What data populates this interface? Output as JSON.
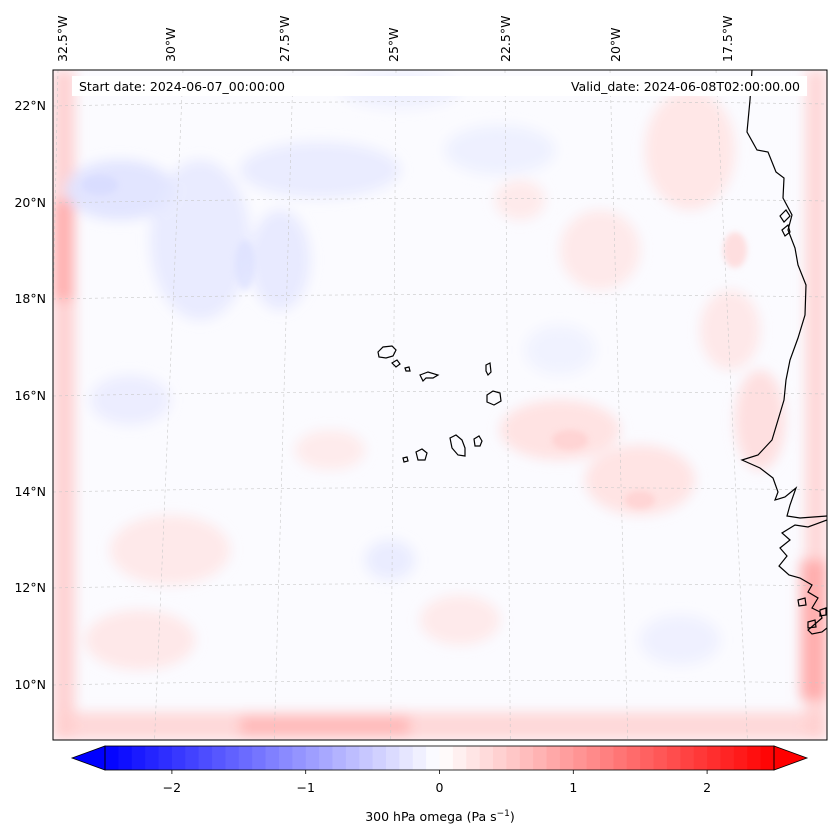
{
  "header": {
    "start_date": "Start date: 2024-06-07_00:00:00",
    "valid_date": "Valid_date: 2024-06-08T02:00:00.00"
  },
  "lon_ticks": [
    {
      "value": -32.5,
      "label": "32.5°W"
    },
    {
      "value": -30.0,
      "label": "30°W"
    },
    {
      "value": -27.5,
      "label": "27.5°W"
    },
    {
      "value": -25.0,
      "label": "25°W"
    },
    {
      "value": -22.5,
      "label": "22.5°W"
    },
    {
      "value": -20.0,
      "label": "20°W"
    },
    {
      "value": -17.5,
      "label": "17.5°W"
    }
  ],
  "lat_ticks": [
    {
      "value": 22,
      "label": "22°N"
    },
    {
      "value": 20,
      "label": "20°N"
    },
    {
      "value": 18,
      "label": "18°N"
    },
    {
      "value": 16,
      "label": "16°N"
    },
    {
      "value": 14,
      "label": "14°N"
    },
    {
      "value": 12,
      "label": "12°N"
    },
    {
      "value": 10,
      "label": "10°N"
    }
  ],
  "colorbar": {
    "min": -2.5,
    "max": 2.5,
    "ticks": [
      {
        "value": -2,
        "label": "−2"
      },
      {
        "value": -1,
        "label": "−1"
      },
      {
        "value": 0,
        "label": "0"
      },
      {
        "value": 1,
        "label": "1"
      },
      {
        "value": 2,
        "label": "2"
      }
    ],
    "label_main": "300 hPa omega (Pa s",
    "label_exp": "−1",
    "label_end": ")",
    "colormap": "bwr",
    "low_color": "#0000ff",
    "mid_color": "#ffffff",
    "high_color": "#ff0000"
  },
  "map": {
    "lon_range": [
      -33.0,
      -15.5
    ],
    "lat_range": [
      9.0,
      22.8
    ],
    "coastline_color": "#000000",
    "gridline_color": "#c8c8c8"
  }
}
